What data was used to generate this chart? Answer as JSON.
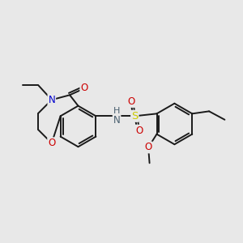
{
  "background_color": "#e8e8e8",
  "figsize": [
    3.0,
    3.0
  ],
  "dpi": 100,
  "bond_color": "#1a1a1a",
  "line_width": 1.4,
  "colors": {
    "N": "#0000cc",
    "O": "#cc0000",
    "S": "#cccc00",
    "NH": "#4a6070",
    "C": "#1a1a1a"
  }
}
